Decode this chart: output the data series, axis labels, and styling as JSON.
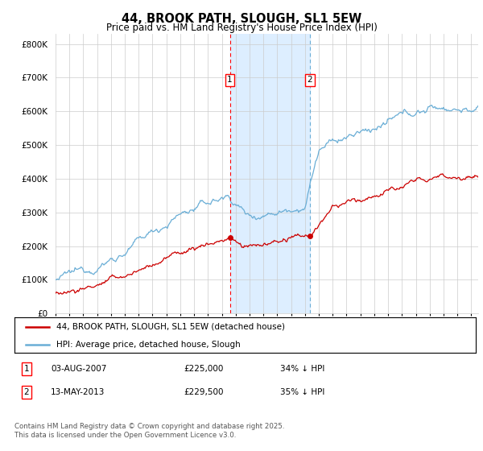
{
  "title": "44, BROOK PATH, SLOUGH, SL1 5EW",
  "subtitle": "Price paid vs. HM Land Registry's House Price Index (HPI)",
  "ytick_values": [
    0,
    100000,
    200000,
    300000,
    400000,
    500000,
    600000,
    700000,
    800000
  ],
  "ylim": [
    0,
    830000
  ],
  "xlim_start": 1995.0,
  "xlim_end": 2025.5,
  "sale1_date": 2007.58,
  "sale1_label": "1",
  "sale1_price": 225000,
  "sale2_date": 2013.36,
  "sale2_label": "2",
  "sale2_price": 229500,
  "legend_line1": "44, BROOK PATH, SLOUGH, SL1 5EW (detached house)",
  "legend_line2": "HPI: Average price, detached house, Slough",
  "footer": "Contains HM Land Registry data © Crown copyright and database right 2025.\nThis data is licensed under the Open Government Licence v3.0.",
  "hpi_color": "#6aaed6",
  "price_color": "#cc0000",
  "shade_color": "#ddeeff",
  "grid_color": "#cccccc",
  "bg_color": "#ffffff"
}
